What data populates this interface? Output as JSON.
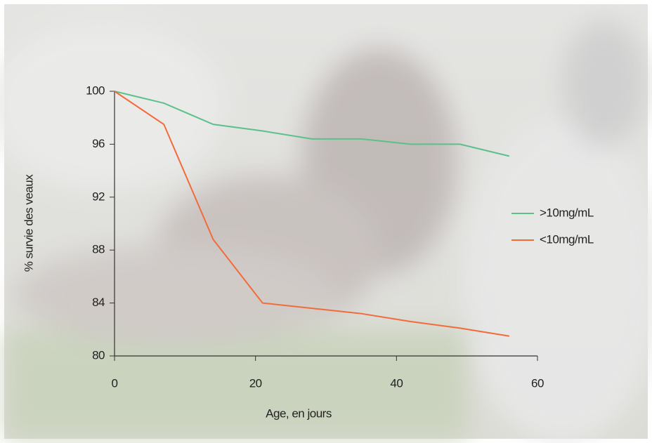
{
  "chart_data": {
    "type": "line",
    "x_label": "Age, en jours",
    "y_label": "% survie des veaux",
    "series": [
      {
        "name": ">10mg/mL",
        "color": "#5cc08a",
        "x": [
          0,
          7,
          14,
          21,
          28,
          35,
          42,
          49,
          56
        ],
        "values": [
          100,
          99.1,
          97.5,
          97,
          96.4,
          96.4,
          96,
          96,
          95.1
        ]
      },
      {
        "name": "<10mg/mL",
        "color": "#f26b3a",
        "x": [
          0,
          7,
          14,
          21,
          28,
          35,
          42,
          49,
          56
        ],
        "values": [
          100,
          97.5,
          88.8,
          84,
          83.6,
          83.2,
          82.6,
          82.1,
          81.5
        ]
      }
    ],
    "xlim": [
      0,
      60
    ],
    "xticks": [
      0,
      20,
      40,
      60
    ],
    "ylim": [
      80,
      100
    ],
    "yticks": [
      80,
      84,
      88,
      92,
      96,
      100
    ],
    "legend": "right"
  }
}
